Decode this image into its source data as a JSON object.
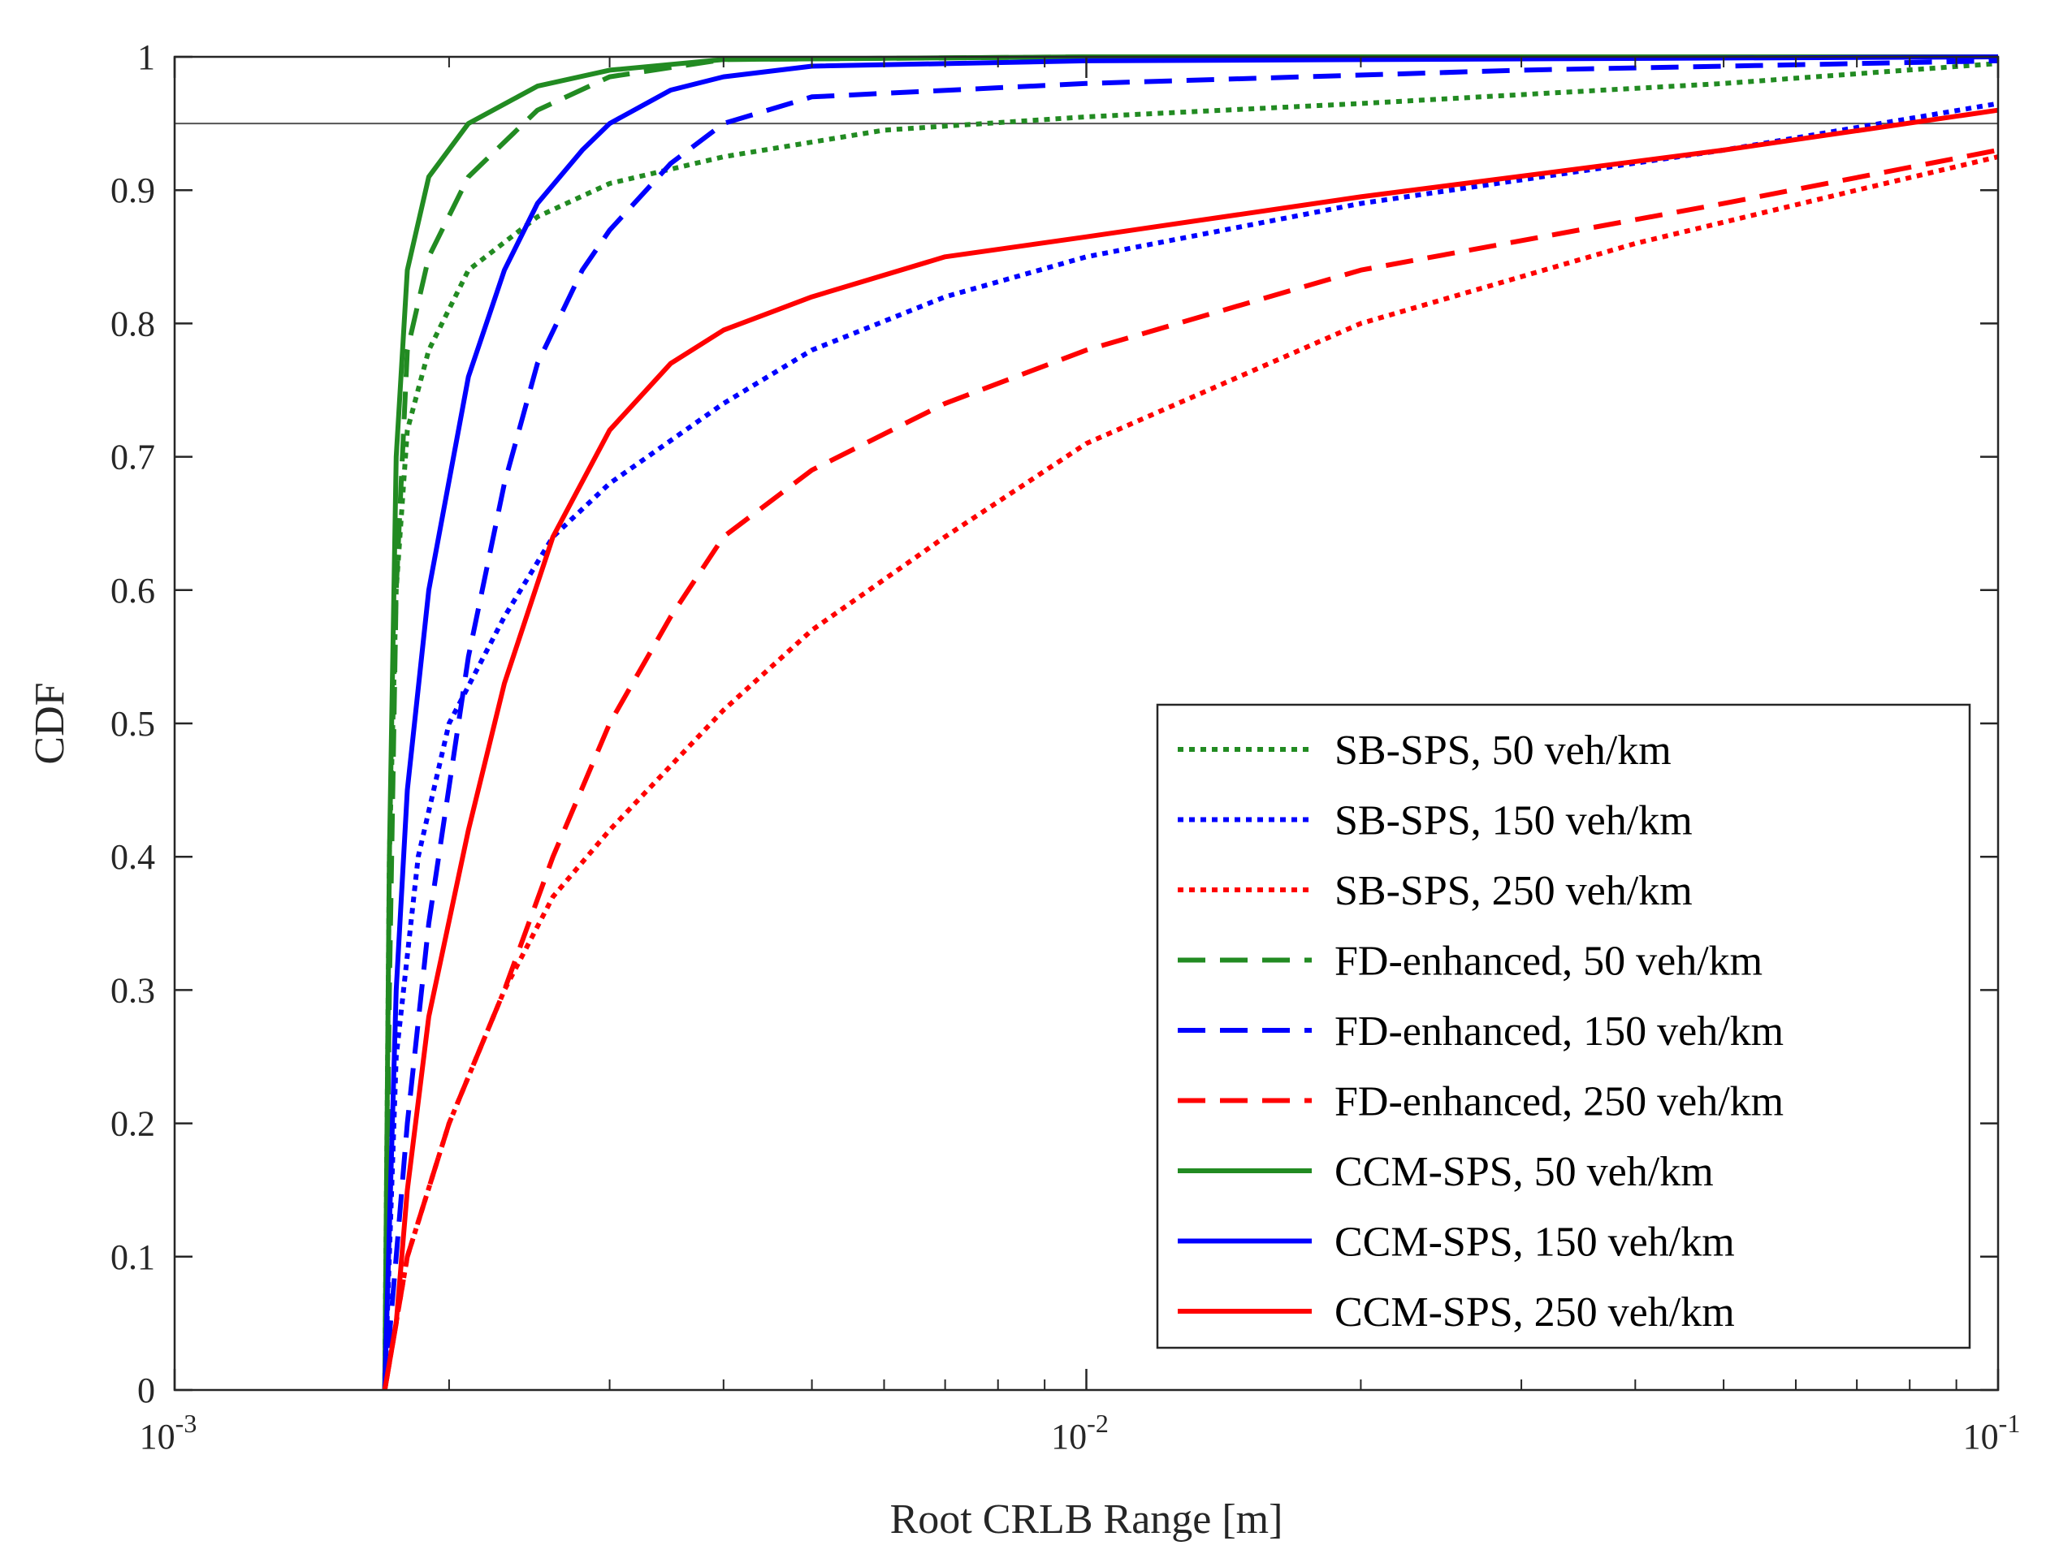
{
  "chart_data": {
    "type": "line",
    "xscale": "log",
    "xlabel": "Root CRLB Range [m]",
    "ylabel": "CDF",
    "xlim": [
      0.001,
      0.1
    ],
    "ylim": [
      0,
      1
    ],
    "x_ticks": [
      {
        "value": 0.001,
        "base": "10",
        "exp": "-3"
      },
      {
        "value": 0.01,
        "base": "10",
        "exp": "-2"
      },
      {
        "value": 0.1,
        "base": "10",
        "exp": "-1"
      }
    ],
    "y_ticks": [
      "0",
      "0.1",
      "0.2",
      "0.3",
      "0.4",
      "0.5",
      "0.6",
      "0.7",
      "0.8",
      "0.9",
      "1"
    ],
    "reference_line": {
      "y": 0.95,
      "color": "#555555"
    },
    "legend_position": "bottom-right",
    "series": [
      {
        "name": "SB-SPS, 50 veh/km",
        "color": "#228B22",
        "style": "dotted",
        "points": [
          [
            0.0017,
            0
          ],
          [
            0.00172,
            0.4
          ],
          [
            0.00175,
            0.6
          ],
          [
            0.0018,
            0.72
          ],
          [
            0.0019,
            0.78
          ],
          [
            0.0021,
            0.84
          ],
          [
            0.0025,
            0.88
          ],
          [
            0.003,
            0.905
          ],
          [
            0.004,
            0.925
          ],
          [
            0.006,
            0.945
          ],
          [
            0.01,
            0.955
          ],
          [
            0.02,
            0.965
          ],
          [
            0.05,
            0.98
          ],
          [
            0.1,
            0.995
          ]
        ]
      },
      {
        "name": "SB-SPS, 150 veh/km",
        "color": "#0000FF",
        "style": "dotted",
        "points": [
          [
            0.0017,
            0
          ],
          [
            0.00175,
            0.25
          ],
          [
            0.00185,
            0.4
          ],
          [
            0.002,
            0.5
          ],
          [
            0.0023,
            0.58
          ],
          [
            0.0026,
            0.64
          ],
          [
            0.003,
            0.68
          ],
          [
            0.004,
            0.74
          ],
          [
            0.005,
            0.78
          ],
          [
            0.007,
            0.82
          ],
          [
            0.01,
            0.85
          ],
          [
            0.02,
            0.89
          ],
          [
            0.05,
            0.93
          ],
          [
            0.1,
            0.965
          ]
        ]
      },
      {
        "name": "SB-SPS, 250 veh/km",
        "color": "#FF0000",
        "style": "dotted",
        "points": [
          [
            0.0017,
            0
          ],
          [
            0.0018,
            0.1
          ],
          [
            0.002,
            0.2
          ],
          [
            0.0023,
            0.3
          ],
          [
            0.0026,
            0.37
          ],
          [
            0.003,
            0.42
          ],
          [
            0.004,
            0.51
          ],
          [
            0.005,
            0.57
          ],
          [
            0.007,
            0.64
          ],
          [
            0.01,
            0.71
          ],
          [
            0.02,
            0.8
          ],
          [
            0.04,
            0.86
          ],
          [
            0.07,
            0.9
          ],
          [
            0.1,
            0.925
          ]
        ]
      },
      {
        "name": "FD-enhanced, 50 veh/km",
        "color": "#228B22",
        "style": "dashed",
        "points": [
          [
            0.0017,
            0
          ],
          [
            0.00172,
            0.3
          ],
          [
            0.00175,
            0.6
          ],
          [
            0.0018,
            0.78
          ],
          [
            0.0019,
            0.85
          ],
          [
            0.0021,
            0.91
          ],
          [
            0.0025,
            0.96
          ],
          [
            0.003,
            0.985
          ],
          [
            0.004,
            0.998
          ],
          [
            0.01,
            1.0
          ],
          [
            0.1,
            1.0
          ]
        ]
      },
      {
        "name": "FD-enhanced, 150 veh/km",
        "color": "#0000FF",
        "style": "dashed",
        "points": [
          [
            0.0017,
            0
          ],
          [
            0.00175,
            0.1
          ],
          [
            0.0018,
            0.2
          ],
          [
            0.0019,
            0.35
          ],
          [
            0.0021,
            0.55
          ],
          [
            0.0023,
            0.68
          ],
          [
            0.0025,
            0.77
          ],
          [
            0.0028,
            0.84
          ],
          [
            0.003,
            0.87
          ],
          [
            0.0035,
            0.92
          ],
          [
            0.004,
            0.95
          ],
          [
            0.005,
            0.97
          ],
          [
            0.01,
            0.98
          ],
          [
            0.03,
            0.99
          ],
          [
            0.1,
            0.997
          ]
        ]
      },
      {
        "name": "FD-enhanced, 250 veh/km",
        "color": "#FF0000",
        "style": "dashed",
        "points": [
          [
            0.0017,
            0
          ],
          [
            0.0018,
            0.1
          ],
          [
            0.002,
            0.2
          ],
          [
            0.0023,
            0.3
          ],
          [
            0.0026,
            0.4
          ],
          [
            0.003,
            0.5
          ],
          [
            0.0035,
            0.58
          ],
          [
            0.004,
            0.64
          ],
          [
            0.005,
            0.69
          ],
          [
            0.007,
            0.74
          ],
          [
            0.01,
            0.78
          ],
          [
            0.02,
            0.84
          ],
          [
            0.05,
            0.89
          ],
          [
            0.1,
            0.93
          ]
        ]
      },
      {
        "name": "CCM-SPS, 50 veh/km",
        "color": "#228B22",
        "style": "solid",
        "points": [
          [
            0.0017,
            0
          ],
          [
            0.00172,
            0.4
          ],
          [
            0.00175,
            0.7
          ],
          [
            0.0018,
            0.84
          ],
          [
            0.0019,
            0.91
          ],
          [
            0.0021,
            0.95
          ],
          [
            0.0025,
            0.978
          ],
          [
            0.003,
            0.99
          ],
          [
            0.004,
            0.998
          ],
          [
            0.01,
            1.0
          ],
          [
            0.1,
            1.0
          ]
        ]
      },
      {
        "name": "CCM-SPS, 150 veh/km",
        "color": "#0000FF",
        "style": "solid",
        "points": [
          [
            0.0017,
            0
          ],
          [
            0.00175,
            0.3
          ],
          [
            0.0018,
            0.45
          ],
          [
            0.0019,
            0.6
          ],
          [
            0.0021,
            0.76
          ],
          [
            0.0023,
            0.84
          ],
          [
            0.0025,
            0.89
          ],
          [
            0.0028,
            0.93
          ],
          [
            0.003,
            0.95
          ],
          [
            0.0035,
            0.975
          ],
          [
            0.004,
            0.985
          ],
          [
            0.005,
            0.993
          ],
          [
            0.01,
            0.997
          ],
          [
            0.1,
            1.0
          ]
        ]
      },
      {
        "name": "CCM-SPS, 250 veh/km",
        "color": "#FF0000",
        "style": "solid",
        "points": [
          [
            0.0017,
            0
          ],
          [
            0.00175,
            0.05
          ],
          [
            0.0018,
            0.15
          ],
          [
            0.0019,
            0.28
          ],
          [
            0.0021,
            0.42
          ],
          [
            0.0023,
            0.53
          ],
          [
            0.0026,
            0.64
          ],
          [
            0.003,
            0.72
          ],
          [
            0.0035,
            0.77
          ],
          [
            0.004,
            0.795
          ],
          [
            0.005,
            0.82
          ],
          [
            0.007,
            0.85
          ],
          [
            0.01,
            0.865
          ],
          [
            0.02,
            0.895
          ],
          [
            0.05,
            0.93
          ],
          [
            0.1,
            0.96
          ]
        ]
      }
    ]
  }
}
